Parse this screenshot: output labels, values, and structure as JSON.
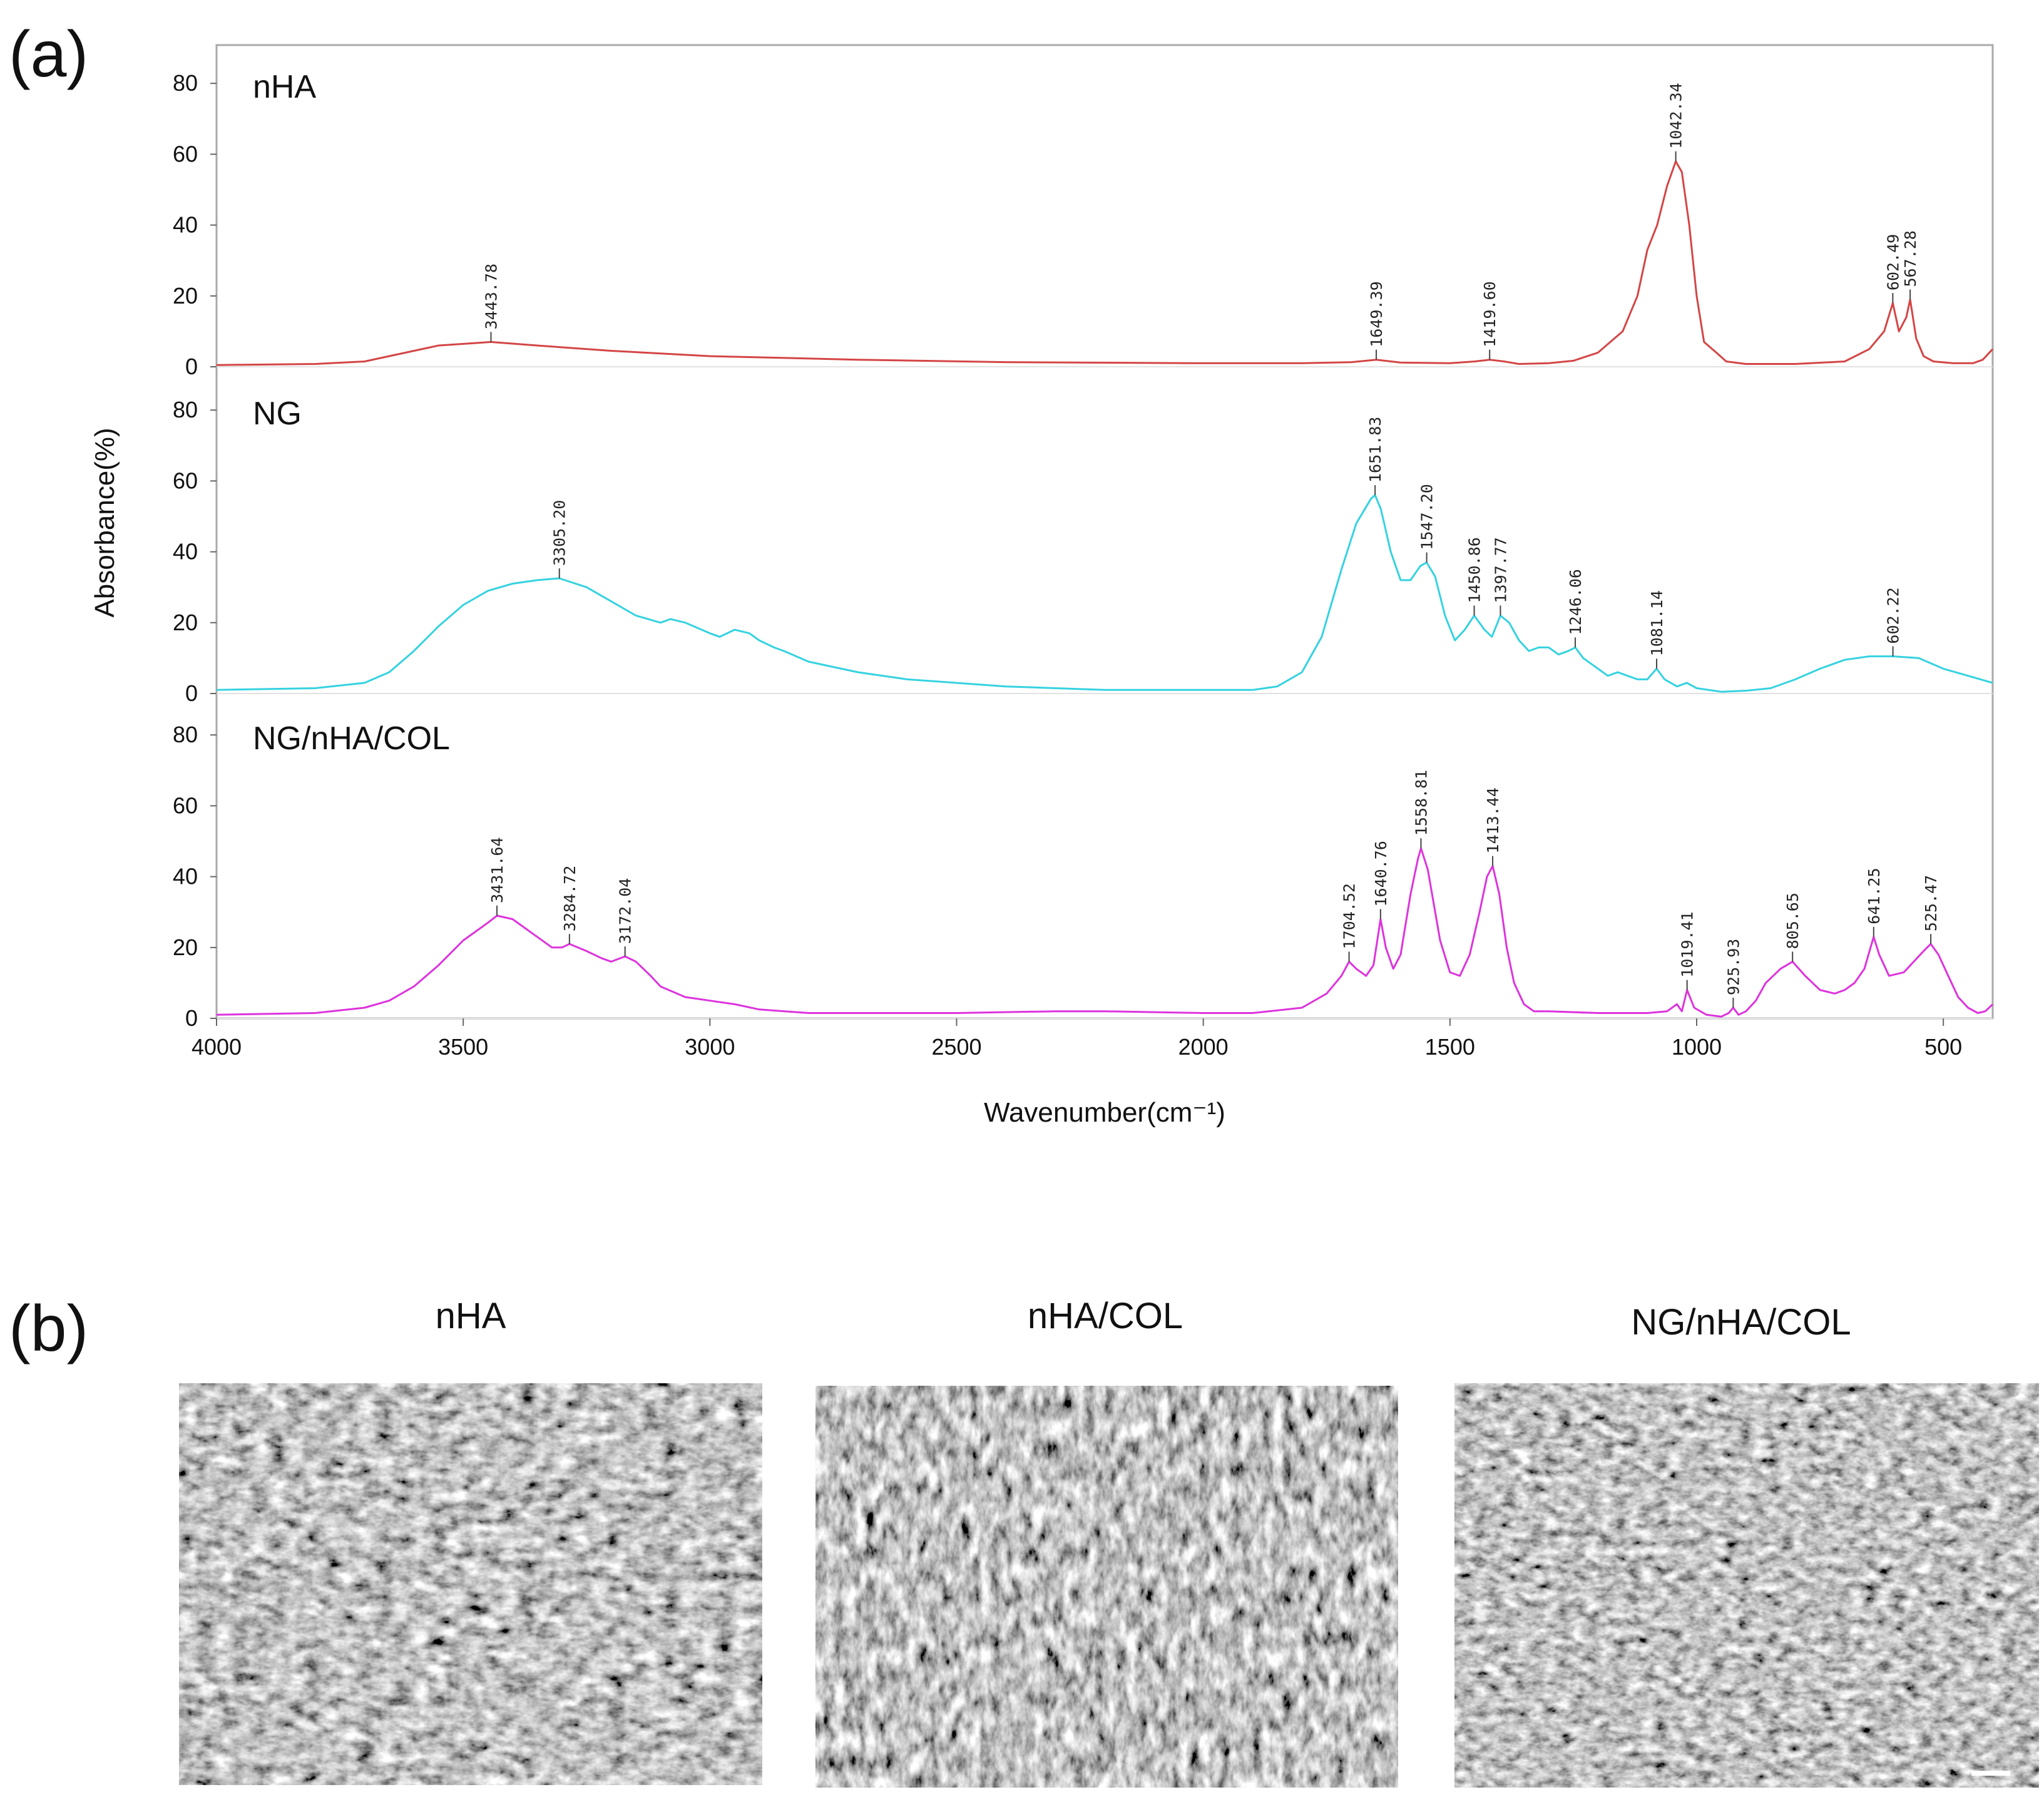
{
  "panel_a_label": "(a)",
  "panel_b_label": "(b)",
  "chart_data": {
    "type": "line",
    "title": "",
    "xlabel": "Wavenumber(cm⁻¹)",
    "ylabel": "Absorbance(%)",
    "xlim": [
      4000,
      400
    ],
    "x_direction": "descending",
    "xticks": [
      4000,
      3500,
      3000,
      2500,
      2000,
      1500,
      1000,
      500
    ],
    "ylim": [
      0,
      88
    ],
    "yticks": [
      0,
      20,
      40,
      60,
      80
    ],
    "grid": false,
    "legend": "none",
    "series": [
      {
        "name": "nHA",
        "color": "#d44545",
        "points": [
          [
            4000,
            0.5
          ],
          [
            3800,
            0.8
          ],
          [
            3700,
            1.5
          ],
          [
            3650,
            3
          ],
          [
            3550,
            6
          ],
          [
            3443.78,
            7
          ],
          [
            3350,
            6
          ],
          [
            3200,
            4.5
          ],
          [
            3000,
            3
          ],
          [
            2700,
            2
          ],
          [
            2400,
            1.3
          ],
          [
            2000,
            1
          ],
          [
            1800,
            1
          ],
          [
            1700,
            1.3
          ],
          [
            1649.39,
            2
          ],
          [
            1600,
            1.2
          ],
          [
            1500,
            1
          ],
          [
            1450,
            1.5
          ],
          [
            1419.6,
            2
          ],
          [
            1390,
            1.5
          ],
          [
            1360,
            0.8
          ],
          [
            1300,
            1
          ],
          [
            1250,
            1.7
          ],
          [
            1200,
            4
          ],
          [
            1150,
            10
          ],
          [
            1120,
            20
          ],
          [
            1100,
            33
          ],
          [
            1080,
            40
          ],
          [
            1060,
            51
          ],
          [
            1042.34,
            58
          ],
          [
            1030,
            55
          ],
          [
            1015,
            40
          ],
          [
            1000,
            20
          ],
          [
            985,
            7
          ],
          [
            960,
            4
          ],
          [
            940,
            1.5
          ],
          [
            900,
            0.8
          ],
          [
            800,
            0.8
          ],
          [
            700,
            1.5
          ],
          [
            650,
            5
          ],
          [
            620,
            10
          ],
          [
            602.49,
            18
          ],
          [
            590,
            10
          ],
          [
            575,
            14
          ],
          [
            567.28,
            19
          ],
          [
            555,
            8
          ],
          [
            540,
            3
          ],
          [
            520,
            1.5
          ],
          [
            480,
            1
          ],
          [
            440,
            1
          ],
          [
            420,
            2
          ],
          [
            400,
            5
          ]
        ],
        "peaks": [
          {
            "x": 3443.78,
            "y": 7,
            "label": "3443.78"
          },
          {
            "x": 1649.39,
            "y": 2,
            "label": "1649.39"
          },
          {
            "x": 1419.6,
            "y": 2,
            "label": "1419.60"
          },
          {
            "x": 1042.34,
            "y": 58,
            "label": "1042.34"
          },
          {
            "x": 602.49,
            "y": 18,
            "label": "602.49"
          },
          {
            "x": 567.28,
            "y": 19,
            "label": "567.28"
          }
        ]
      },
      {
        "name": "NG",
        "color": "#35d2e0",
        "points": [
          [
            4000,
            1
          ],
          [
            3800,
            1.5
          ],
          [
            3700,
            3
          ],
          [
            3650,
            6
          ],
          [
            3600,
            12
          ],
          [
            3550,
            19
          ],
          [
            3500,
            25
          ],
          [
            3450,
            29
          ],
          [
            3400,
            31
          ],
          [
            3350,
            32
          ],
          [
            3305.2,
            32.5
          ],
          [
            3250,
            30
          ],
          [
            3200,
            26
          ],
          [
            3150,
            22
          ],
          [
            3100,
            20
          ],
          [
            3080,
            21
          ],
          [
            3050,
            20
          ],
          [
            3000,
            17
          ],
          [
            2980,
            16
          ],
          [
            2950,
            18
          ],
          [
            2920,
            17
          ],
          [
            2900,
            15
          ],
          [
            2870,
            13
          ],
          [
            2850,
            12
          ],
          [
            2800,
            9
          ],
          [
            2700,
            6
          ],
          [
            2600,
            4
          ],
          [
            2400,
            2
          ],
          [
            2200,
            1
          ],
          [
            2000,
            1
          ],
          [
            1900,
            1
          ],
          [
            1850,
            2
          ],
          [
            1800,
            6
          ],
          [
            1760,
            16
          ],
          [
            1720,
            35
          ],
          [
            1690,
            48
          ],
          [
            1660,
            55
          ],
          [
            1651.83,
            56
          ],
          [
            1640,
            52
          ],
          [
            1620,
            40
          ],
          [
            1600,
            32
          ],
          [
            1580,
            32
          ],
          [
            1560,
            36
          ],
          [
            1547.2,
            37
          ],
          [
            1530,
            33
          ],
          [
            1510,
            22
          ],
          [
            1490,
            15
          ],
          [
            1470,
            18
          ],
          [
            1450.86,
            22
          ],
          [
            1430,
            18
          ],
          [
            1415,
            16
          ],
          [
            1397.77,
            22
          ],
          [
            1380,
            20
          ],
          [
            1360,
            15
          ],
          [
            1340,
            12
          ],
          [
            1320,
            13
          ],
          [
            1300,
            13
          ],
          [
            1280,
            11
          ],
          [
            1260,
            12
          ],
          [
            1246.06,
            13
          ],
          [
            1230,
            10
          ],
          [
            1200,
            7
          ],
          [
            1180,
            5
          ],
          [
            1160,
            6
          ],
          [
            1140,
            5
          ],
          [
            1120,
            4
          ],
          [
            1100,
            4
          ],
          [
            1081.14,
            7
          ],
          [
            1065,
            4
          ],
          [
            1040,
            2
          ],
          [
            1020,
            3
          ],
          [
            1000,
            1.5
          ],
          [
            950,
            0.5
          ],
          [
            900,
            0.8
          ],
          [
            850,
            1.5
          ],
          [
            800,
            4
          ],
          [
            750,
            7
          ],
          [
            700,
            9.5
          ],
          [
            650,
            10.5
          ],
          [
            602.22,
            10.5
          ],
          [
            550,
            10
          ],
          [
            500,
            7
          ],
          [
            450,
            5
          ],
          [
            400,
            3
          ]
        ],
        "peaks": [
          {
            "x": 3305.2,
            "y": 32.5,
            "label": "3305.20"
          },
          {
            "x": 1651.83,
            "y": 56,
            "label": "1651.83"
          },
          {
            "x": 1547.2,
            "y": 37,
            "label": "1547.20"
          },
          {
            "x": 1450.86,
            "y": 22,
            "label": "1450.86"
          },
          {
            "x": 1397.77,
            "y": 22,
            "label": "1397.77"
          },
          {
            "x": 1246.06,
            "y": 13,
            "label": "1246.06"
          },
          {
            "x": 1081.14,
            "y": 7,
            "label": "1081.14"
          },
          {
            "x": 602.22,
            "y": 10.5,
            "label": "602.22"
          }
        ]
      },
      {
        "name": "NG/nHA/COL",
        "color": "#dd33dd",
        "points": [
          [
            4000,
            1
          ],
          [
            3800,
            1.5
          ],
          [
            3700,
            3
          ],
          [
            3650,
            5
          ],
          [
            3600,
            9
          ],
          [
            3550,
            15
          ],
          [
            3500,
            22
          ],
          [
            3450,
            27
          ],
          [
            3431.64,
            29
          ],
          [
            3400,
            28
          ],
          [
            3350,
            23
          ],
          [
            3320,
            20
          ],
          [
            3300,
            20
          ],
          [
            3284.72,
            21
          ],
          [
            3250,
            19
          ],
          [
            3220,
            17
          ],
          [
            3200,
            16
          ],
          [
            3172.04,
            17.5
          ],
          [
            3150,
            16
          ],
          [
            3120,
            12
          ],
          [
            3100,
            9
          ],
          [
            3050,
            6
          ],
          [
            3000,
            5
          ],
          [
            2950,
            4
          ],
          [
            2900,
            2.5
          ],
          [
            2800,
            1.5
          ],
          [
            2500,
            1.5
          ],
          [
            2300,
            2
          ],
          [
            2200,
            2
          ],
          [
            2000,
            1.5
          ],
          [
            1900,
            1.5
          ],
          [
            1800,
            3
          ],
          [
            1750,
            7
          ],
          [
            1720,
            12
          ],
          [
            1704.52,
            16
          ],
          [
            1690,
            14
          ],
          [
            1670,
            12
          ],
          [
            1655,
            15
          ],
          [
            1640.76,
            28
          ],
          [
            1630,
            20
          ],
          [
            1615,
            14
          ],
          [
            1600,
            18
          ],
          [
            1580,
            35
          ],
          [
            1565,
            45
          ],
          [
            1558.81,
            48
          ],
          [
            1545,
            42
          ],
          [
            1520,
            22
          ],
          [
            1500,
            13
          ],
          [
            1480,
            12
          ],
          [
            1460,
            18
          ],
          [
            1440,
            30
          ],
          [
            1425,
            40
          ],
          [
            1413.44,
            43
          ],
          [
            1400,
            35
          ],
          [
            1385,
            20
          ],
          [
            1370,
            10
          ],
          [
            1350,
            4
          ],
          [
            1330,
            2
          ],
          [
            1300,
            2
          ],
          [
            1200,
            1.5
          ],
          [
            1100,
            1.5
          ],
          [
            1060,
            2
          ],
          [
            1040,
            4
          ],
          [
            1030,
            2
          ],
          [
            1019.41,
            8
          ],
          [
            1005,
            3
          ],
          [
            980,
            1
          ],
          [
            950,
            0.5
          ],
          [
            935,
            1.5
          ],
          [
            925.93,
            3
          ],
          [
            915,
            1
          ],
          [
            900,
            2
          ],
          [
            880,
            5
          ],
          [
            860,
            10
          ],
          [
            830,
            14
          ],
          [
            805.65,
            16
          ],
          [
            780,
            12
          ],
          [
            750,
            8
          ],
          [
            720,
            7
          ],
          [
            700,
            8
          ],
          [
            680,
            10
          ],
          [
            660,
            14
          ],
          [
            641.25,
            23
          ],
          [
            630,
            18
          ],
          [
            610,
            12
          ],
          [
            580,
            13
          ],
          [
            560,
            16
          ],
          [
            540,
            19
          ],
          [
            525.47,
            21
          ],
          [
            510,
            18
          ],
          [
            490,
            12
          ],
          [
            470,
            6
          ],
          [
            450,
            3
          ],
          [
            430,
            1.5
          ],
          [
            415,
            2
          ],
          [
            400,
            4
          ]
        ],
        "peaks": [
          {
            "x": 3431.64,
            "y": 29,
            "label": "3431.64"
          },
          {
            "x": 3284.72,
            "y": 21,
            "label": "3284.72"
          },
          {
            "x": 3172.04,
            "y": 17.5,
            "label": "3172.04"
          },
          {
            "x": 1704.52,
            "y": 16,
            "label": "1704.52"
          },
          {
            "x": 1640.76,
            "y": 28,
            "label": "1640.76"
          },
          {
            "x": 1558.81,
            "y": 48,
            "label": "1558.81"
          },
          {
            "x": 1413.44,
            "y": 43,
            "label": "1413.44"
          },
          {
            "x": 1019.41,
            "y": 8,
            "label": "1019.41"
          },
          {
            "x": 925.93,
            "y": 3,
            "label": "925.93"
          },
          {
            "x": 805.65,
            "y": 16,
            "label": "805.65"
          },
          {
            "x": 641.25,
            "y": 23,
            "label": "641.25"
          },
          {
            "x": 525.47,
            "y": 21,
            "label": "525.47"
          }
        ]
      }
    ]
  },
  "sem_images": [
    {
      "title": "nHA"
    },
    {
      "title": "nHA/COL"
    },
    {
      "title": "NG/nHA/COL"
    }
  ]
}
